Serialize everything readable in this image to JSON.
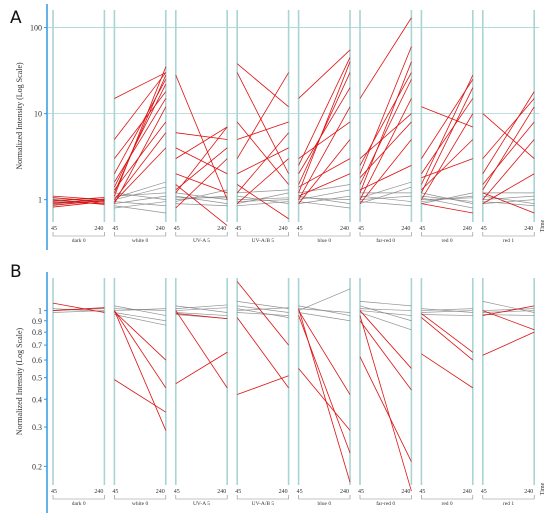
{
  "figure": {
    "colors": {
      "axis": "#3399dd",
      "grid": "#a8d4d4",
      "gray_line": "#7f7f7f",
      "red_line": "#dd1111",
      "text": "#333333"
    }
  },
  "chart_data": [
    {
      "type": "line",
      "panel_label": "A",
      "ylabel": "Normalized Intensity (Log Scale)",
      "yscale": "log",
      "ylim": [
        0.55,
        160
      ],
      "yticks": [
        1,
        10,
        100
      ],
      "ytick_labels": [
        "1",
        "10",
        "100"
      ],
      "x_tick_labels": [
        "45",
        "240"
      ],
      "x_axis_title": "Time",
      "facets": [
        "dark 0",
        "white 0",
        "UV-A 5",
        "UV-A/B 5",
        "blue 0",
        "far-red 0",
        "red 0",
        "red 1"
      ],
      "series_groups": [
        {
          "facet": "dark 0",
          "gray": [
            [
              0.96,
              0.95
            ],
            [
              1.0,
              0.97
            ],
            [
              0.92,
              1.0
            ],
            [
              1.04,
              0.99
            ],
            [
              0.88,
              0.98
            ]
          ],
          "red": [
            [
              0.9,
              1.02
            ],
            [
              1.06,
              0.93
            ],
            [
              0.82,
              0.95
            ],
            [
              0.97,
              1.06
            ],
            [
              1.0,
              0.88
            ],
            [
              0.86,
              0.98
            ],
            [
              1.1,
              1.0
            ],
            [
              0.94,
              0.9
            ]
          ]
        },
        {
          "facet": "white 0",
          "gray": [
            [
              1.0,
              1.4
            ],
            [
              0.95,
              0.85
            ],
            [
              1.1,
              1.2
            ],
            [
              0.9,
              1.1
            ],
            [
              1.2,
              1.0
            ],
            [
              0.85,
              0.7
            ],
            [
              1.05,
              1.6
            ],
            [
              0.8,
              0.95
            ]
          ],
          "red": [
            [
              15,
              30
            ],
            [
              1.1,
              35
            ],
            [
              1.2,
              28
            ],
            [
              1.4,
              22
            ],
            [
              3,
              18
            ],
            [
              0.9,
              12
            ],
            [
              2,
              25
            ],
            [
              1.3,
              8
            ],
            [
              0.95,
              4
            ],
            [
              5,
              30
            ],
            [
              1.6,
              15
            ],
            [
              1.0,
              6
            ]
          ]
        },
        {
          "facet": "UV-A 5",
          "gray": [
            [
              1.0,
              1.1
            ],
            [
              1.1,
              0.9
            ],
            [
              0.95,
              1.3
            ],
            [
              1.2,
              1.0
            ],
            [
              0.9,
              0.85
            ],
            [
              1.05,
              1.05
            ]
          ],
          "red": [
            [
              28,
              1.0
            ],
            [
              3,
              7
            ],
            [
              1.2,
              7
            ],
            [
              6,
              5
            ],
            [
              1.5,
              0.5
            ],
            [
              0.8,
              3
            ],
            [
              2,
              1.2
            ],
            [
              1.3,
              4
            ],
            [
              4,
              2
            ]
          ]
        },
        {
          "facet": "UV-A/B 5",
          "gray": [
            [
              1.0,
              1.05
            ],
            [
              0.9,
              1.2
            ],
            [
              1.1,
              0.9
            ],
            [
              0.95,
              1.0
            ],
            [
              1.2,
              1.3
            ],
            [
              0.85,
              0.95
            ]
          ],
          "red": [
            [
              38,
              12
            ],
            [
              30,
              2
            ],
            [
              3,
              30
            ],
            [
              5,
              8
            ],
            [
              1.5,
              0.6
            ],
            [
              1.2,
              6
            ],
            [
              2,
              4
            ],
            [
              8,
              1.5
            ],
            [
              0.9,
              3
            ]
          ]
        },
        {
          "facet": "blue 0",
          "gray": [
            [
              1.0,
              1.3
            ],
            [
              1.1,
              0.9
            ],
            [
              0.9,
              1.1
            ],
            [
              1.2,
              1.5
            ],
            [
              0.95,
              0.8
            ],
            [
              1.05,
              1.0
            ]
          ],
          "red": [
            [
              15,
              55
            ],
            [
              1.2,
              40
            ],
            [
              1.5,
              30
            ],
            [
              2,
              20
            ],
            [
              1.0,
              12
            ],
            [
              3,
              8
            ],
            [
              0.9,
              5
            ],
            [
              1.4,
              3
            ],
            [
              2.5,
              45
            ],
            [
              1.1,
              2
            ]
          ]
        },
        {
          "facet": "far-red 0",
          "gray": [
            [
              1.0,
              1.1
            ],
            [
              0.9,
              1.4
            ],
            [
              1.1,
              0.95
            ],
            [
              1.2,
              1.2
            ],
            [
              0.95,
              0.85
            ],
            [
              1.05,
              1.6
            ]
          ],
          "red": [
            [
              15,
              130
            ],
            [
              2,
              60
            ],
            [
              1.5,
              25
            ],
            [
              1.2,
              40
            ],
            [
              1.0,
              15
            ],
            [
              3,
              10
            ],
            [
              0.9,
              5
            ],
            [
              2.5,
              30
            ],
            [
              1.3,
              2.5
            ],
            [
              1.8,
              8
            ]
          ]
        },
        {
          "facet": "red 0",
          "gray": [
            [
              1.0,
              1.05
            ],
            [
              1.1,
              0.95
            ],
            [
              0.9,
              1.2
            ],
            [
              1.2,
              0.9
            ],
            [
              0.95,
              1.1
            ],
            [
              1.05,
              0.8
            ]
          ],
          "red": [
            [
              12,
              7
            ],
            [
              1.5,
              28
            ],
            [
              1.2,
              20
            ],
            [
              2,
              15
            ],
            [
              1.0,
              10
            ],
            [
              3,
              25
            ],
            [
              0.9,
              0.7
            ],
            [
              1.3,
              5
            ],
            [
              1.8,
              3
            ]
          ]
        },
        {
          "facet": "red 1",
          "gray": [
            [
              1.0,
              1.1
            ],
            [
              1.1,
              0.9
            ],
            [
              0.9,
              1.0
            ],
            [
              1.2,
              1.2
            ],
            [
              0.95,
              0.85
            ]
          ],
          "red": [
            [
              10,
              3
            ],
            [
              3,
              15
            ],
            [
              1.2,
              0.7
            ],
            [
              1.5,
              8
            ],
            [
              1.0,
              5
            ],
            [
              2,
              18
            ],
            [
              0.9,
              2
            ],
            [
              1.3,
              12
            ]
          ]
        }
      ]
    },
    {
      "type": "line",
      "panel_label": "B",
      "ylabel": "Normalized Intensity (Log Scale)",
      "yscale": "log",
      "ylim": [
        0.165,
        1.4
      ],
      "yticks": [
        0.2,
        0.3,
        0.4,
        0.5,
        0.6,
        0.7,
        0.8,
        0.9,
        1
      ],
      "ytick_labels": [
        "0.2",
        "0.3",
        "0.4",
        "0.5",
        "0.6",
        "0.7",
        "0.8",
        "0.9",
        "1"
      ],
      "x_tick_labels": [
        "45",
        "240"
      ],
      "x_axis_title": "Time",
      "facets": [
        "dark 0",
        "white 0",
        "UV-A 5",
        "UV-A/B 5",
        "blue 0",
        "far-red 0",
        "red 0",
        "red 1"
      ],
      "series_groups": [
        {
          "facet": "dark 0",
          "gray": [
            [
              1.0,
              1.02
            ],
            [
              0.98,
              1.0
            ],
            [
              1.02,
              0.99
            ]
          ],
          "red": [
            [
              1.08,
              0.98
            ],
            [
              1.0,
              1.03
            ]
          ]
        },
        {
          "facet": "white 0",
          "gray": [
            [
              1.0,
              1.02
            ],
            [
              1.05,
              0.95
            ],
            [
              0.98,
              0.9
            ],
            [
              1.02,
              1.0
            ],
            [
              0.96,
              0.86
            ]
          ],
          "red": [
            [
              1.0,
              0.29
            ],
            [
              0.49,
              0.35
            ],
            [
              1.0,
              0.45
            ],
            [
              0.99,
              0.6
            ]
          ]
        },
        {
          "facet": "UV-A 5",
          "gray": [
            [
              1.0,
              1.03
            ],
            [
              1.05,
              0.98
            ],
            [
              0.98,
              0.95
            ],
            [
              1.02,
              1.06
            ],
            [
              0.96,
              0.92
            ]
          ],
          "red": [
            [
              1.0,
              0.45
            ],
            [
              0.47,
              0.65
            ],
            [
              0.97,
              0.92
            ]
          ]
        },
        {
          "facet": "UV-A/B 5",
          "gray": [
            [
              1.0,
              1.03
            ],
            [
              1.05,
              0.98
            ],
            [
              0.98,
              0.95
            ],
            [
              1.1,
              1.02
            ],
            [
              1.02,
              0.93
            ]
          ],
          "red": [
            [
              1.35,
              0.7
            ],
            [
              0.42,
              0.51
            ],
            [
              0.93,
              0.45
            ]
          ]
        },
        {
          "facet": "blue 0",
          "gray": [
            [
              1.0,
              1.25
            ],
            [
              1.02,
              0.98
            ],
            [
              0.98,
              0.9
            ],
            [
              1.05,
              0.95
            ]
          ],
          "red": [
            [
              1.02,
              0.17
            ],
            [
              0.95,
              0.23
            ],
            [
              1.0,
              0.42
            ],
            [
              0.55,
              0.29
            ]
          ]
        },
        {
          "facet": "far-red 0",
          "gray": [
            [
              1.0,
              0.95
            ],
            [
              1.02,
              1.0
            ],
            [
              0.98,
              0.82
            ],
            [
              1.05,
              0.9
            ],
            [
              1.1,
              1.05
            ]
          ],
          "red": [
            [
              0.95,
              0.155
            ],
            [
              0.62,
              0.21
            ],
            [
              1.0,
              0.55
            ],
            [
              0.9,
              0.44
            ]
          ]
        },
        {
          "facet": "red 0",
          "gray": [
            [
              1.0,
              1.02
            ],
            [
              0.98,
              1.0
            ],
            [
              1.02,
              0.98
            ],
            [
              0.96,
              0.95
            ]
          ],
          "red": [
            [
              0.93,
              0.6
            ],
            [
              0.64,
              0.45
            ],
            [
              0.97,
              0.65
            ]
          ]
        },
        {
          "facet": "red 1",
          "gray": [
            [
              1.0,
              1.02
            ],
            [
              1.1,
              0.98
            ],
            [
              0.98,
              1.0
            ],
            [
              0.96,
              0.95
            ]
          ],
          "red": [
            [
              0.95,
              1.05
            ],
            [
              0.63,
              0.8
            ],
            [
              1.0,
              0.82
            ]
          ]
        }
      ]
    }
  ]
}
